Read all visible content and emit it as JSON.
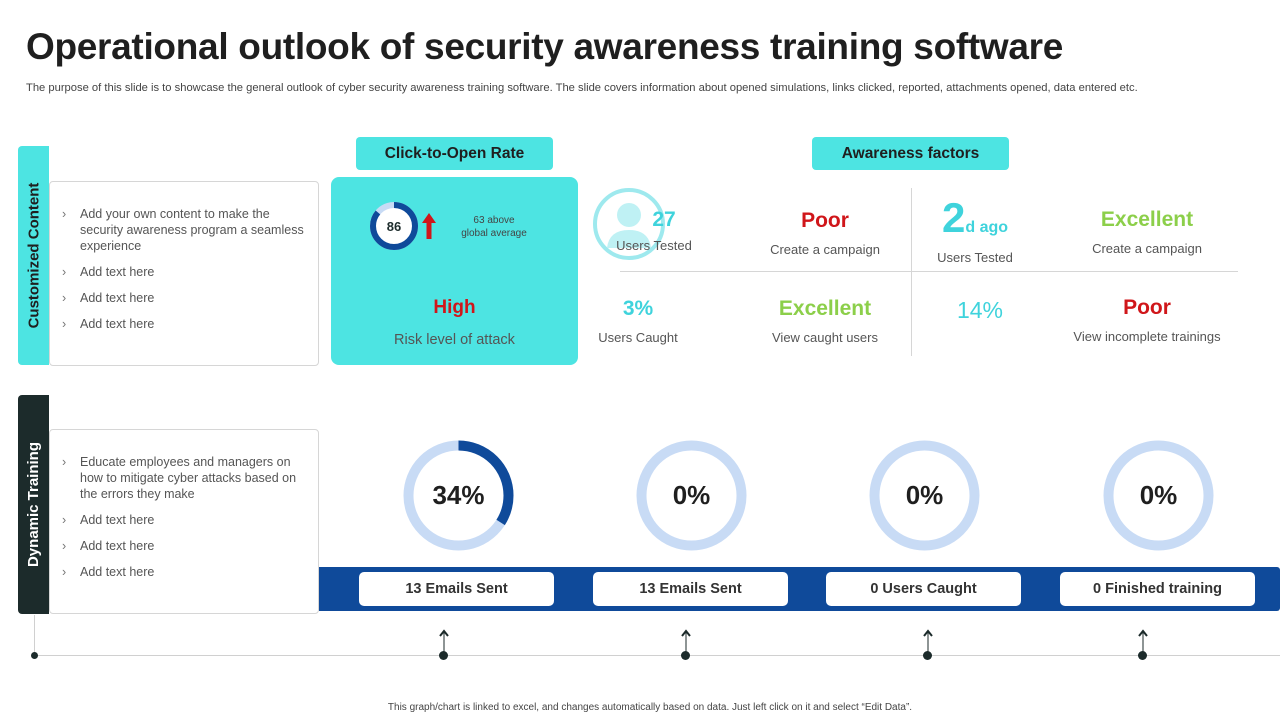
{
  "title": "Operational outlook of security awareness training software",
  "subtitle": "The purpose of this slide is to showcase the general outlook of cyber security awareness training software. The slide covers information about opened simulations, links clicked, reported, attachments opened, data entered etc.",
  "colors": {
    "accent": "#4de4e2",
    "dark": "#1c2b2b",
    "navy": "#0f4a9a",
    "red": "#d0161a",
    "green": "#8ccf4a",
    "cyan": "#3fd3dc",
    "ring": "#c8dbf5"
  },
  "customized_content": {
    "tab_label": "Customized Content",
    "bullets": [
      "Add your own content to make the security awareness  program  a seamless experience",
      "Add text here",
      "Add text here",
      "Add text here"
    ]
  },
  "dynamic_training": {
    "tab_label": "Dynamic Training",
    "bullets": [
      "Educate employees and managers on how to mitigate cyber attacks based on the errors they make",
      "Add text here",
      "Add text here",
      "Add text here"
    ]
  },
  "click_to_open": {
    "header": "Click-to-Open Rate",
    "gauge_value": "86",
    "gauge_percent": 86,
    "above_line1": "63 above",
    "above_line2": "global average",
    "risk_level": "High",
    "risk_label": "Risk level of attack"
  },
  "awareness": {
    "header": "Awareness factors",
    "metrics": [
      {
        "value": "27",
        "label": "Users Tested"
      },
      {
        "value": "Poor",
        "label": "Create a campaign"
      },
      {
        "value_big": "2",
        "value_suffix": "d ago",
        "label": "Users Tested"
      },
      {
        "value": "Excellent",
        "label": "Create a campaign"
      },
      {
        "value": "3%",
        "label": "Users Caught"
      },
      {
        "value": "Excellent",
        "label": "View caught users"
      },
      {
        "value": "14%",
        "label": ""
      },
      {
        "value": "Poor",
        "label": "View incomplete trainings"
      }
    ]
  },
  "donuts": [
    {
      "label": "34%",
      "percent": 34
    },
    {
      "label": "0%",
      "percent": 0
    },
    {
      "label": "0%",
      "percent": 0
    },
    {
      "label": "0%",
      "percent": 0
    }
  ],
  "band_buttons": [
    "13 Emails Sent",
    "13 Emails Sent",
    "0 Users Caught",
    "0 Finished training"
  ],
  "footer": "This graph/chart is linked to excel, and changes automatically based on data. Just left click on it and select “Edit Data”."
}
